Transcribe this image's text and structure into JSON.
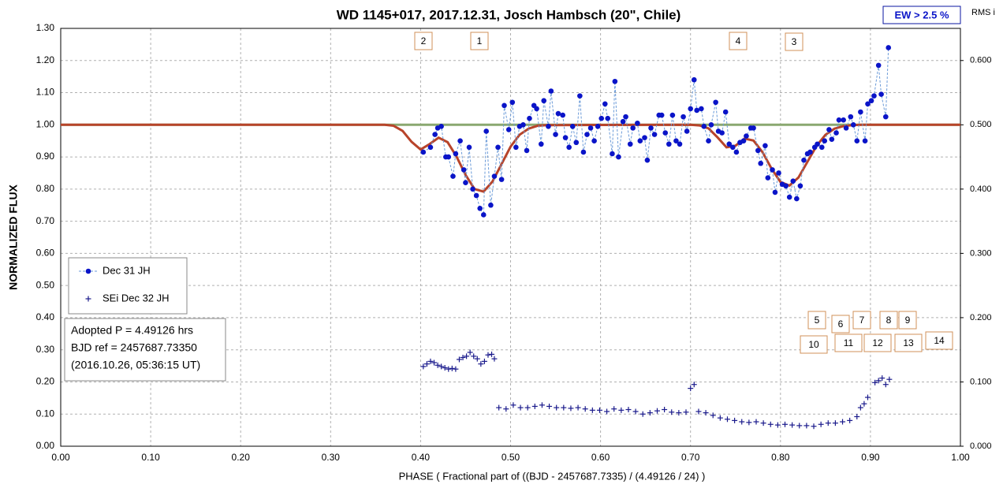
{
  "chart_data": {
    "type": "scatter",
    "title": "WD 1145+017, 2017.12.31, Josch Hambsch (20\", Chile)",
    "badge": "EW >  2.5 %",
    "y2_title": "RMS i",
    "ylabel": "NORMALIZED  FLUX",
    "xlabel": "PHASE  ( Fractional part of ((BJD - 2457687.7335)  / (4.49126  / 24) )",
    "info": [
      "Adopted P = 4.49126 hrs",
      "BJD ref = 2457687.73350",
      "(2016.10.26, 05:36:15 UT)"
    ],
    "annotations": [
      "2",
      "1",
      "4",
      "3",
      "5",
      "6",
      "7",
      "8",
      "9",
      "10",
      "11",
      "12",
      "13",
      "14"
    ],
    "xlim": [
      0,
      1
    ],
    "xticks": [
      {
        "value": 0,
        "label": "0.00"
      },
      {
        "value": 0.1,
        "label": "0.10"
      },
      {
        "value": 0.2,
        "label": "0.20"
      },
      {
        "value": 0.3,
        "label": "0.30"
      },
      {
        "value": 0.4,
        "label": "0.40"
      },
      {
        "value": 0.5,
        "label": "0.50"
      },
      {
        "value": 0.6,
        "label": "0.60"
      },
      {
        "value": 0.7,
        "label": "0.70"
      },
      {
        "value": 0.8,
        "label": "0.80"
      },
      {
        "value": 0.9,
        "label": "0.90"
      },
      {
        "value": 1,
        "label": "1.00"
      }
    ],
    "ylim": [
      0,
      1.3
    ],
    "yticks": [
      {
        "value": 0,
        "label": "0.00"
      },
      {
        "value": 0.1,
        "label": "0.10"
      },
      {
        "value": 0.2,
        "label": "0.20"
      },
      {
        "value": 0.3,
        "label": "0.30"
      },
      {
        "value": 0.4,
        "label": "0.40"
      },
      {
        "value": 0.5,
        "label": "0.50"
      },
      {
        "value": 0.6,
        "label": "0.60"
      },
      {
        "value": 0.7,
        "label": "0.70"
      },
      {
        "value": 0.8,
        "label": "0.80"
      },
      {
        "value": 0.9,
        "label": "0.90"
      },
      {
        "value": 1,
        "label": "1.00"
      },
      {
        "value": 1.1,
        "label": "1.10"
      },
      {
        "value": 1.2,
        "label": "1.20"
      },
      {
        "value": 1.3,
        "label": "1.30"
      }
    ],
    "y2lim": [
      0,
      0.65
    ],
    "y2ticks": [
      {
        "value": 0,
        "label": "0.000"
      },
      {
        "value": 0.1,
        "label": "0.100"
      },
      {
        "value": 0.2,
        "label": "0.200"
      },
      {
        "value": 0.3,
        "label": "0.300"
      },
      {
        "value": 0.4,
        "label": "0.400"
      },
      {
        "value": 0.5,
        "label": "0.500"
      },
      {
        "value": 0.6,
        "label": "0.600"
      }
    ],
    "grid": true,
    "series": [
      {
        "name": "Dec 31 JH",
        "color": "#0a14c8",
        "marker": "circle",
        "line": "dashed",
        "line_color": "#6a9ad8",
        "x": [
          0.403,
          0.411,
          0.416,
          0.419,
          0.423,
          0.428,
          0.431,
          0.436,
          0.439,
          0.444,
          0.448,
          0.45,
          0.454,
          0.458,
          0.462,
          0.466,
          0.47,
          0.473,
          0.478,
          0.482,
          0.486,
          0.49,
          0.493,
          0.498,
          0.502,
          0.506,
          0.51,
          0.514,
          0.518,
          0.521,
          0.526,
          0.529,
          0.534,
          0.537,
          0.542,
          0.545,
          0.55,
          0.553,
          0.558,
          0.561,
          0.565,
          0.569,
          0.573,
          0.577,
          0.581,
          0.585,
          0.589,
          0.593,
          0.597,
          0.601,
          0.605,
          0.608,
          0.613,
          0.616,
          0.62,
          0.625,
          0.628,
          0.633,
          0.636,
          0.641,
          0.644,
          0.649,
          0.652,
          0.656,
          0.66,
          0.665,
          0.668,
          0.672,
          0.676,
          0.68,
          0.684,
          0.688,
          0.692,
          0.696,
          0.7,
          0.704,
          0.707,
          0.712,
          0.715,
          0.72,
          0.723,
          0.728,
          0.731,
          0.735,
          0.739,
          0.743,
          0.747,
          0.751,
          0.755,
          0.759,
          0.762,
          0.767,
          0.77,
          0.775,
          0.778,
          0.783,
          0.786,
          0.791,
          0.794,
          0.798,
          0.802,
          0.806,
          0.81,
          0.814,
          0.818,
          0.822,
          0.826,
          0.83,
          0.833,
          0.838,
          0.841,
          0.846,
          0.849,
          0.854,
          0.857,
          0.862,
          0.865,
          0.87,
          0.873,
          0.878,
          0.881,
          0.885,
          0.889,
          0.894,
          0.897,
          0.901,
          0.904,
          0.909,
          0.912,
          0.917,
          0.92
        ],
        "values": [
          0.915,
          0.93,
          0.97,
          0.99,
          0.995,
          0.9,
          0.9,
          0.84,
          0.91,
          0.95,
          0.86,
          0.82,
          0.93,
          0.8,
          0.78,
          0.74,
          0.72,
          0.98,
          0.75,
          0.84,
          0.93,
          0.83,
          1.06,
          0.985,
          1.07,
          0.93,
          0.995,
          1.0,
          0.92,
          1.02,
          1.06,
          1.05,
          0.94,
          1.075,
          0.995,
          1.105,
          0.97,
          1.035,
          1.03,
          0.96,
          0.93,
          0.995,
          0.945,
          1.09,
          0.915,
          0.97,
          0.99,
          0.95,
          0.995,
          1.02,
          1.065,
          1.02,
          0.91,
          1.135,
          0.9,
          1.01,
          1.025,
          0.94,
          0.99,
          1.005,
          0.95,
          0.96,
          0.89,
          0.99,
          0.97,
          1.03,
          1.03,
          0.975,
          0.94,
          1.03,
          0.95,
          0.94,
          1.025,
          0.98,
          1.05,
          1.14,
          1.045,
          1.05,
          0.995,
          0.95,
          1.0,
          1.07,
          0.98,
          0.975,
          1.04,
          0.94,
          0.93,
          0.915,
          0.945,
          0.95,
          0.965,
          0.99,
          0.99,
          0.92,
          0.88,
          0.935,
          0.835,
          0.86,
          0.79,
          0.85,
          0.815,
          0.81,
          0.775,
          0.825,
          0.77,
          0.81,
          0.89,
          0.91,
          0.915,
          0.93,
          0.94,
          0.93,
          0.95,
          0.985,
          0.955,
          0.975,
          1.015,
          1.015,
          0.99,
          1.025,
          1.0,
          0.95,
          1.04,
          0.95,
          1.065,
          1.075,
          1.09,
          1.185,
          1.095,
          1.025,
          1.24
        ]
      },
      {
        "name": "SEi Dec 32 JH",
        "color": "#1a1a8c",
        "marker": "plus",
        "axis": "y2",
        "x": [
          0.403,
          0.407,
          0.411,
          0.415,
          0.419,
          0.423,
          0.427,
          0.431,
          0.435,
          0.439,
          0.443,
          0.447,
          0.451,
          0.455,
          0.459,
          0.463,
          0.467,
          0.471,
          0.475,
          0.479,
          0.482,
          0.487,
          0.495,
          0.503,
          0.511,
          0.519,
          0.527,
          0.535,
          0.543,
          0.551,
          0.559,
          0.567,
          0.575,
          0.583,
          0.591,
          0.599,
          0.607,
          0.615,
          0.623,
          0.631,
          0.639,
          0.647,
          0.655,
          0.663,
          0.671,
          0.679,
          0.687,
          0.695,
          0.7,
          0.704,
          0.709,
          0.717,
          0.725,
          0.733,
          0.741,
          0.749,
          0.757,
          0.765,
          0.773,
          0.781,
          0.789,
          0.797,
          0.805,
          0.813,
          0.821,
          0.829,
          0.837,
          0.845,
          0.853,
          0.861,
          0.869,
          0.877,
          0.885,
          0.889,
          0.893,
          0.897,
          0.905,
          0.909,
          0.913,
          0.917,
          0.921
        ],
        "values": [
          0.124,
          0.128,
          0.132,
          0.13,
          0.126,
          0.124,
          0.122,
          0.12,
          0.121,
          0.12,
          0.135,
          0.138,
          0.14,
          0.146,
          0.14,
          0.136,
          0.128,
          0.132,
          0.142,
          0.143,
          0.136,
          0.06,
          0.058,
          0.064,
          0.06,
          0.06,
          0.062,
          0.064,
          0.062,
          0.06,
          0.06,
          0.059,
          0.06,
          0.058,
          0.056,
          0.056,
          0.054,
          0.058,
          0.056,
          0.057,
          0.054,
          0.05,
          0.052,
          0.055,
          0.057,
          0.053,
          0.052,
          0.053,
          0.09,
          0.096,
          0.054,
          0.052,
          0.048,
          0.044,
          0.042,
          0.04,
          0.038,
          0.037,
          0.038,
          0.036,
          0.034,
          0.033,
          0.034,
          0.033,
          0.032,
          0.032,
          0.031,
          0.034,
          0.036,
          0.036,
          0.038,
          0.04,
          0.046,
          0.06,
          0.066,
          0.076,
          0.099,
          0.102,
          0.106,
          0.096,
          0.104
        ]
      }
    ],
    "curves": [
      {
        "color": "#8aa870",
        "x": [
          0,
          1
        ],
        "values": [
          1,
          1
        ]
      },
      {
        "color": "#b8442a",
        "x": [
          0,
          0.35,
          0.36,
          0.37,
          0.38,
          0.39,
          0.4,
          0.41,
          0.42,
          0.43,
          0.44,
          0.45,
          0.46,
          0.47,
          0.48,
          0.49,
          0.5,
          0.51,
          0.52,
          0.53,
          0.54,
          0.7,
          0.71,
          0.72,
          0.73,
          0.74,
          0.75,
          0.76,
          0.77,
          0.78,
          0.79,
          0.8,
          0.81,
          0.82,
          0.83,
          0.84,
          0.85,
          0.86,
          0.87,
          0.88,
          0.89,
          1
        ],
        "values": [
          1,
          1,
          1.0,
          0.997,
          0.981,
          0.947,
          0.923,
          0.94,
          0.96,
          0.946,
          0.901,
          0.844,
          0.8,
          0.792,
          0.824,
          0.878,
          0.932,
          0.969,
          0.988,
          0.997,
          0.999,
          1.0,
          0.998,
          0.989,
          0.961,
          0.93,
          0.935,
          0.957,
          0.951,
          0.915,
          0.864,
          0.822,
          0.811,
          0.836,
          0.885,
          0.934,
          0.969,
          0.988,
          0.996,
          0.999,
          1.0,
          1
        ]
      }
    ]
  }
}
